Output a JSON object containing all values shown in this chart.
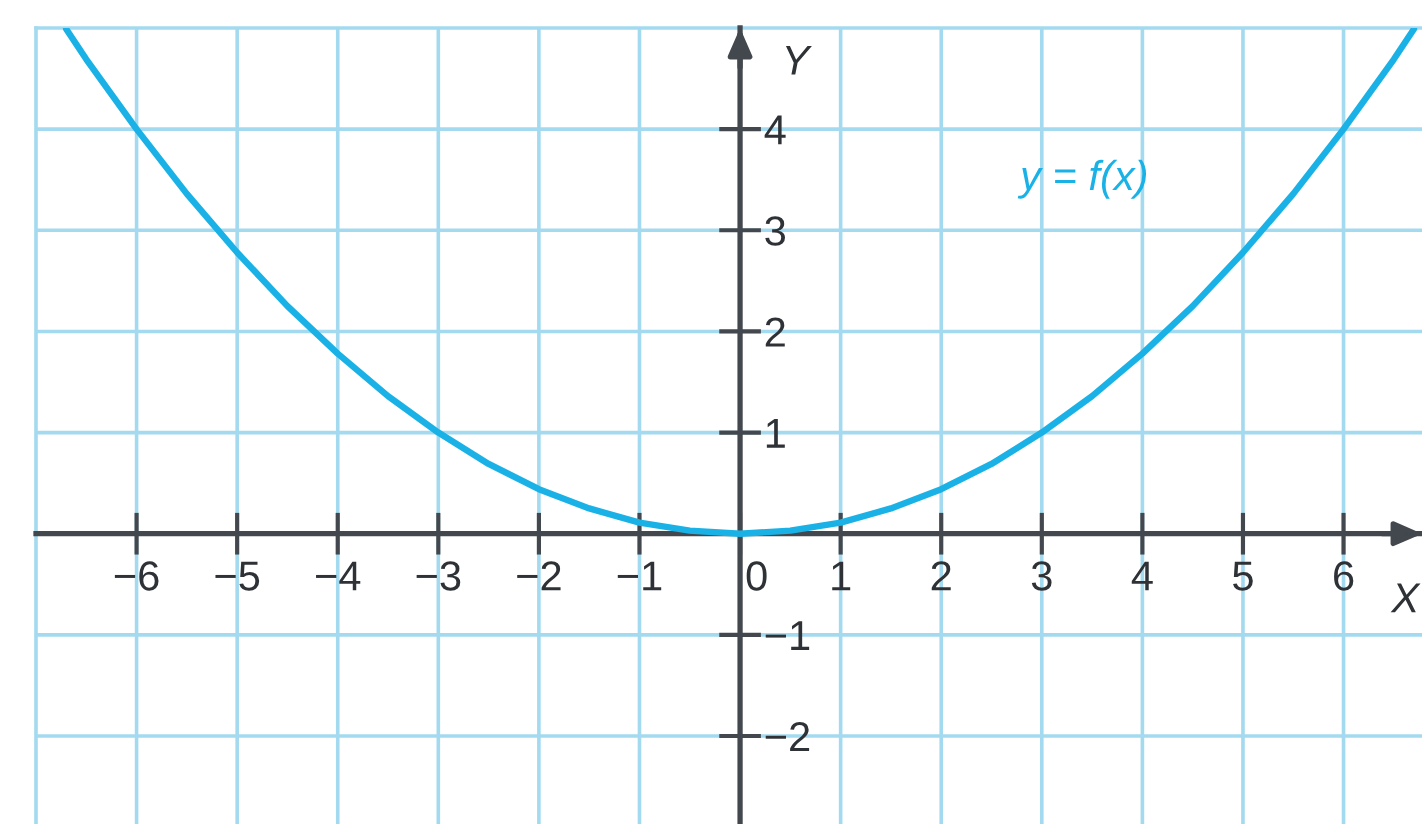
{
  "chart_data": {
    "type": "line",
    "xlabel": "X",
    "ylabel": "Y",
    "xlim": [
      -7,
      6.78
    ],
    "ylim": [
      -2.87,
      5
    ],
    "xticks": [
      {
        "value": -6,
        "label": "−6"
      },
      {
        "value": -5,
        "label": "−5"
      },
      {
        "value": -4,
        "label": "−4"
      },
      {
        "value": -3,
        "label": "−3"
      },
      {
        "value": -2,
        "label": "−2"
      },
      {
        "value": -1,
        "label": "−1"
      },
      0,
      1,
      2,
      3,
      4,
      5,
      6
    ],
    "yticks": [
      {
        "value": -2,
        "label": "−2"
      },
      {
        "value": -1,
        "label": "−1"
      },
      1,
      2,
      3,
      4
    ],
    "grid": true,
    "series": [
      {
        "name": "y = f(x)",
        "color": "#1ab2e6",
        "x": [
          -6.7,
          -6.5,
          -6,
          -5.5,
          -5,
          -4.5,
          -4,
          -3.5,
          -3,
          -2.5,
          -2,
          -1.5,
          -1,
          -0.5,
          0,
          0.5,
          1,
          1.5,
          2,
          2.5,
          3,
          3.5,
          4,
          4.5,
          5,
          5.5,
          6,
          6.5,
          6.7
        ],
        "values": [
          4.99,
          4.69,
          4.0,
          3.36,
          2.78,
          2.25,
          1.78,
          1.36,
          1.0,
          0.69,
          0.44,
          0.25,
          0.11,
          0.03,
          0,
          0.03,
          0.11,
          0.25,
          0.44,
          0.69,
          1.0,
          1.36,
          1.78,
          2.25,
          2.78,
          3.36,
          4.0,
          4.69,
          4.99
        ]
      }
    ]
  }
}
